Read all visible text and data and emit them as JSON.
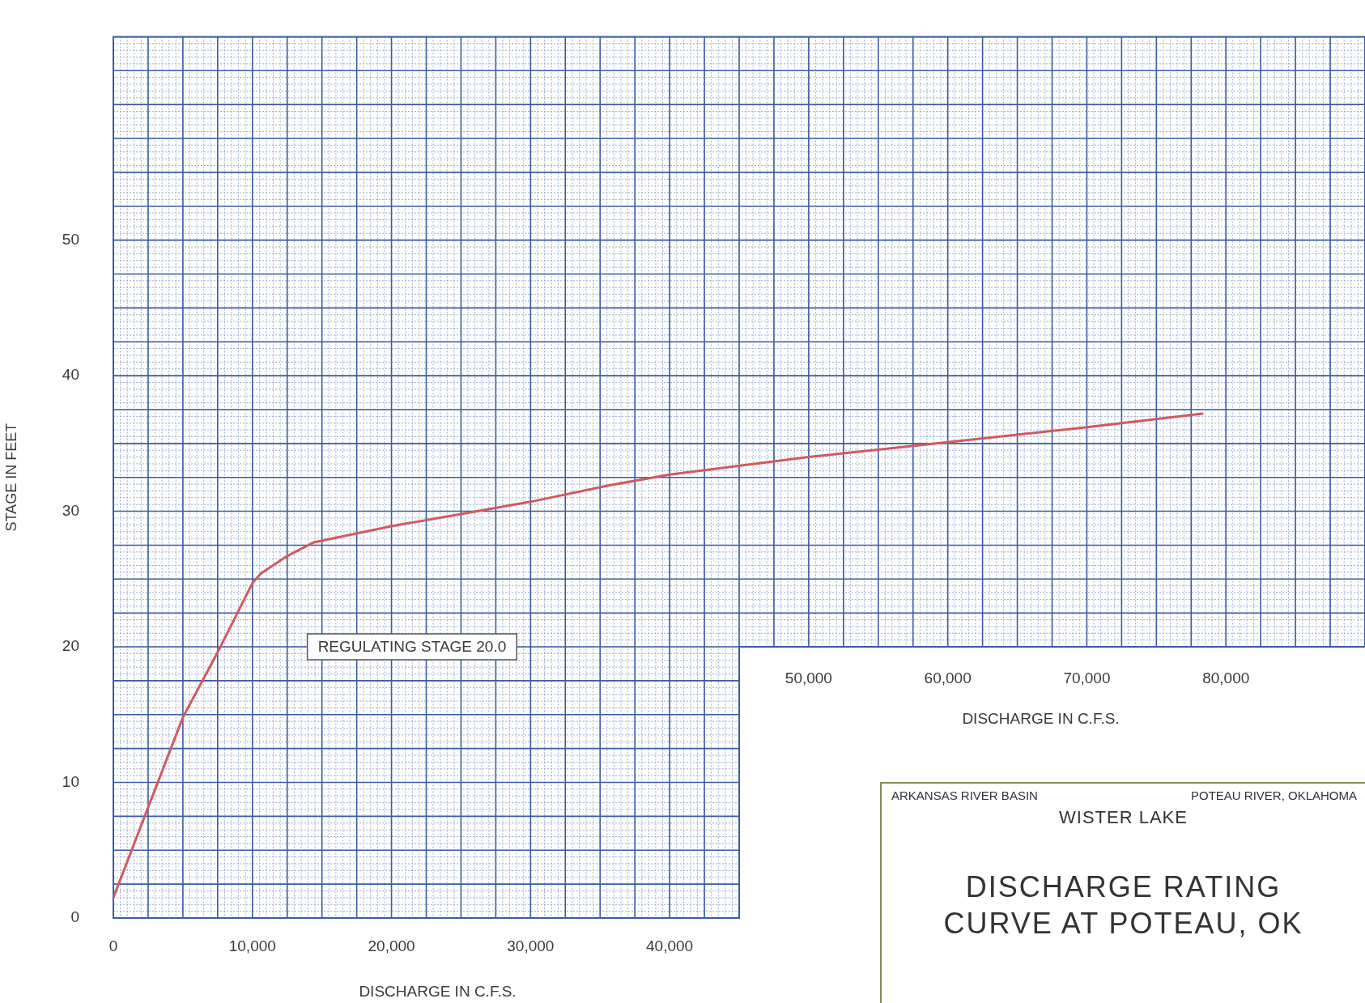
{
  "chart_data": {
    "type": "line",
    "title": "DISCHARGE RATING CURVE AT POTEAU, OK",
    "subtitle": "WISTER LAKE",
    "annotations": [
      "ARKANSAS RIVER BASIN",
      "POTEAU RIVER, OKLAHOMA",
      "REGULATING STAGE 20.0"
    ],
    "xlabel": "DISCHARGE IN C.F.S.",
    "ylabel": "STAGE IN FEET",
    "x": [
      0,
      5000,
      7500,
      10000,
      10600,
      12500,
      14400,
      20000,
      25000,
      30000,
      35600,
      40000,
      50000,
      60000,
      70000,
      78300
    ],
    "values": [
      1.5,
      14.8,
      19.6,
      24.7,
      25.4,
      26.7,
      27.7,
      28.9,
      29.8,
      30.7,
      31.9,
      32.7,
      34.0,
      35.1,
      36.2,
      37.2
    ],
    "color": "#d05a5e",
    "line_style": "solid",
    "xlim": [
      0,
      90000
    ],
    "ylim": [
      0,
      65
    ],
    "xticks": [
      {
        "value": 0,
        "label": "0"
      },
      {
        "value": 10000,
        "label": "10,000"
      },
      {
        "value": 20000,
        "label": "20,000"
      },
      {
        "value": 30000,
        "label": "30,000"
      },
      {
        "value": 40000,
        "label": "40,000"
      }
    ],
    "x2lim": [
      0,
      90000
    ],
    "x2label": "DISCHARGE IN C.F.S.",
    "x2ticks": [
      {
        "value": 50000,
        "label": "50,000"
      },
      {
        "value": 60000,
        "label": "60,000"
      },
      {
        "value": 70000,
        "label": "70,000"
      },
      {
        "value": 80000,
        "label": "80,000"
      }
    ],
    "yticks": [
      0,
      10,
      20,
      30,
      40,
      50
    ],
    "grid": true
  }
}
